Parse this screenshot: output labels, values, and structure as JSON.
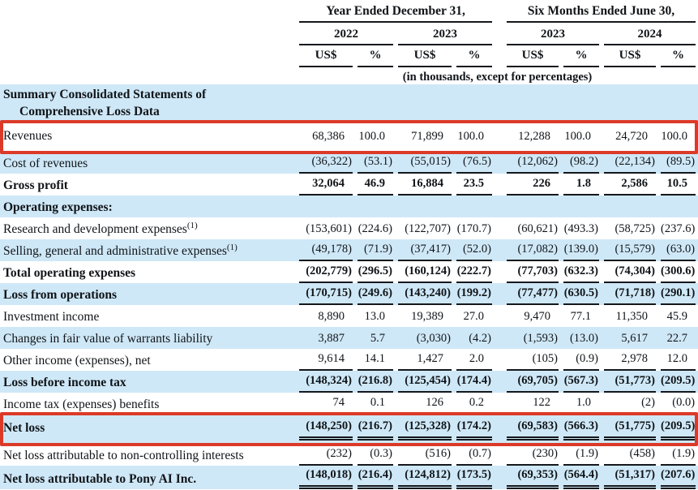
{
  "colors": {
    "highlight_red": "#dc3a28",
    "row_blue": "#cfe8f7",
    "rule_black": "#14181c"
  },
  "header": {
    "group1": "Year Ended December 31,",
    "group2": "Six Months Ended June 30,",
    "years": [
      "2022",
      "2023",
      "2023",
      "2024"
    ],
    "unit_currency": "US$",
    "unit_percent": "%",
    "note": "(in thousands, except for percentages)"
  },
  "section_title": {
    "line1": "Summary Consolidated Statements of",
    "line2": "Comprehensive Loss Data"
  },
  "rows": [
    {
      "label": "Revenues",
      "sup": "",
      "bold": false,
      "underline": "none",
      "highlight": true,
      "values": [
        "68,386",
        "100.0",
        "71,899",
        "100.0",
        "12,288",
        "100.0",
        "24,720",
        "100.0"
      ]
    },
    {
      "label": "Cost of revenues",
      "sup": "",
      "bold": false,
      "underline": "single",
      "highlight": false,
      "values": [
        "(36,322)",
        "(53.1)",
        "(55,015)",
        "(76.5)",
        "(12,062)",
        "(98.2)",
        "(22,134)",
        "(89.5)"
      ]
    },
    {
      "label": "Gross profit",
      "sup": "",
      "bold": true,
      "underline": "single",
      "highlight": false,
      "values": [
        "32,064",
        "46.9",
        "16,884",
        "23.5",
        "226",
        "1.8",
        "2,586",
        "10.5"
      ]
    },
    {
      "label": "Operating expenses:",
      "sup": "",
      "bold": true,
      "underline": "none",
      "highlight": false,
      "values": [
        "",
        "",
        "",
        "",
        "",
        "",
        "",
        ""
      ]
    },
    {
      "label": "Research and development expenses",
      "sup": "(1)",
      "bold": false,
      "underline": "none",
      "highlight": false,
      "values": [
        "(153,601)",
        "(224.6)",
        "(122,707)",
        "(170.7)",
        "(60,621)",
        "(493.3)",
        "(58,725)",
        "(237.6)"
      ]
    },
    {
      "label": "Selling, general and administrative expenses",
      "sup": "(1)",
      "bold": false,
      "underline": "single",
      "highlight": false,
      "values": [
        "(49,178)",
        "(71.9)",
        "(37,417)",
        "(52.0)",
        "(17,082)",
        "(139.0)",
        "(15,579)",
        "(63.0)"
      ]
    },
    {
      "label": "Total operating expenses",
      "sup": "",
      "bold": true,
      "underline": "single",
      "highlight": false,
      "values": [
        "(202,779)",
        "(296.5)",
        "(160,124)",
        "(222.7)",
        "(77,703)",
        "(632.3)",
        "(74,304)",
        "(300.6)"
      ]
    },
    {
      "label": "Loss from operations",
      "sup": "",
      "bold": true,
      "underline": "single",
      "highlight": false,
      "values": [
        "(170,715)",
        "(249.6)",
        "(143,240)",
        "(199.2)",
        "(77,477)",
        "(630.5)",
        "(71,718)",
        "(290.1)"
      ]
    },
    {
      "label": "Investment income",
      "sup": "",
      "bold": false,
      "underline": "none",
      "highlight": false,
      "values": [
        "8,890",
        "13.0",
        "19,389",
        "27.0",
        "9,470",
        "77.1",
        "11,350",
        "45.9"
      ]
    },
    {
      "label": "Changes in fair value of warrants liability",
      "sup": "",
      "bold": false,
      "underline": "none",
      "highlight": false,
      "values": [
        "3,887",
        "5.7",
        "(3,030)",
        "(4.2)",
        "(1,593)",
        "(13.0)",
        "5,617",
        "22.7"
      ]
    },
    {
      "label": "Other income (expenses), net",
      "sup": "",
      "bold": false,
      "underline": "single",
      "highlight": false,
      "values": [
        "9,614",
        "14.1",
        "1,427",
        "2.0",
        "(105)",
        "(0.9)",
        "2,978",
        "12.0"
      ]
    },
    {
      "label": "Loss before income tax",
      "sup": "",
      "bold": true,
      "underline": "single",
      "highlight": false,
      "values": [
        "(148,324)",
        "(216.8)",
        "(125,454)",
        "(174.4)",
        "(69,705)",
        "(567.3)",
        "(51,773)",
        "(209.5)"
      ]
    },
    {
      "label": "Income tax (expenses) benefits",
      "sup": "",
      "bold": false,
      "underline": "single",
      "highlight": false,
      "values": [
        "74",
        "0.1",
        "126",
        "0.2",
        "122",
        "1.0",
        "(2)",
        "(0.0)"
      ]
    },
    {
      "label": "Net loss",
      "sup": "",
      "bold": true,
      "underline": "double",
      "highlight": true,
      "values": [
        "(148,250)",
        "(216.7)",
        "(125,328)",
        "(174.2)",
        "(69,583)",
        "(566.3)",
        "(51,775)",
        "(209.5)"
      ]
    },
    {
      "label": "Net loss attributable to non-controlling interests",
      "sup": "",
      "bold": false,
      "underline": "single",
      "highlight": false,
      "values": [
        "(232)",
        "(0.3)",
        "(516)",
        "(0.7)",
        "(230)",
        "(1.9)",
        "(458)",
        "(1.9)"
      ]
    },
    {
      "label": "Net loss attributable to Pony AI Inc.",
      "sup": "",
      "bold": true,
      "underline": "double",
      "highlight": false,
      "values": [
        "(148,018)",
        "(216.4)",
        "(124,812)",
        "(173.5)",
        "(69,353)",
        "(564.4)",
        "(51,317)",
        "(207.6)"
      ]
    }
  ]
}
